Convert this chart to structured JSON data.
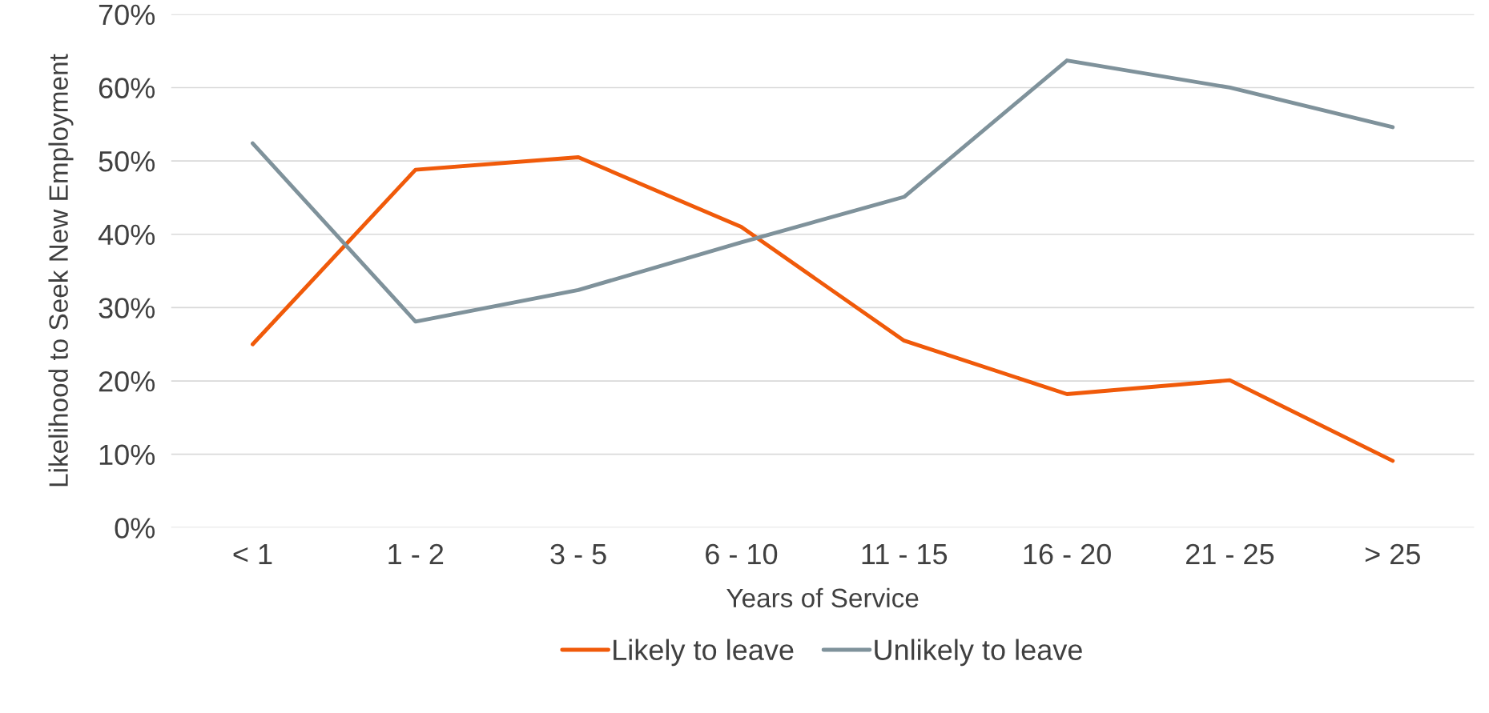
{
  "chart_data": {
    "type": "line",
    "xlabel": "Years of Service",
    "ylabel": "Likelihood to Seek New Employment",
    "categories": [
      "< 1",
      "1 - 2",
      "3 - 5",
      "6 - 10",
      "11 - 15",
      "16 - 20",
      "21 - 25",
      "> 25"
    ],
    "series": [
      {
        "name": "Likely to leave",
        "color": "#f05a0a",
        "values": [
          25.0,
          48.8,
          50.5,
          41.0,
          25.5,
          18.2,
          20.1,
          9.1
        ]
      },
      {
        "name": "Unlikely to leave",
        "color": "#7f929b",
        "values": [
          52.4,
          28.1,
          32.4,
          38.9,
          45.1,
          63.7,
          60.0,
          54.6
        ]
      }
    ],
    "ylim": [
      0,
      70
    ],
    "yticks": [
      {
        "value": 0,
        "label": "0%"
      },
      {
        "value": 10,
        "label": "10%"
      },
      {
        "value": 20,
        "label": "20%"
      },
      {
        "value": 30,
        "label": "30%"
      },
      {
        "value": 40,
        "label": "40%"
      },
      {
        "value": 50,
        "label": "50%"
      },
      {
        "value": 60,
        "label": "60%"
      },
      {
        "value": 70,
        "label": "70%"
      }
    ],
    "grid": "y",
    "legend": "bottom",
    "marker": "none",
    "line_style": "solid"
  }
}
